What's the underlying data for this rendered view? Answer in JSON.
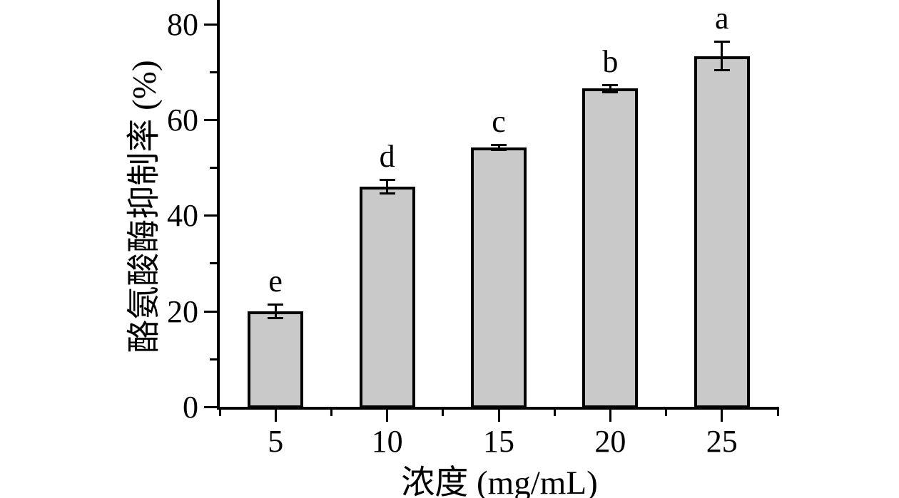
{
  "chart_data": {
    "type": "bar",
    "title": "",
    "xlabel": "浓度 (mg/mL)",
    "ylabel": "酪氨酸酶抑制率 (%)",
    "categories": [
      "5",
      "10",
      "15",
      "20",
      "25"
    ],
    "values": [
      20.0,
      46.0,
      54.2,
      66.5,
      73.3
    ],
    "errors": [
      1.5,
      1.5,
      0.6,
      0.8,
      3.0
    ],
    "bar_labels": [
      "e",
      "d",
      "c",
      "b",
      "a"
    ],
    "ylim": [
      0,
      85
    ],
    "yticks": [
      0,
      20,
      40,
      60,
      80
    ],
    "y_minor_ticks": [
      10,
      30,
      50,
      70
    ],
    "x_minor_tick_positions": "between-categories-and-edges",
    "legend_position": "none",
    "grid": false,
    "bar_fill_color": "#c9c9c9",
    "bar_border_color": "#000000",
    "axis_color": "#000000",
    "background_color": "#ffffff"
  }
}
